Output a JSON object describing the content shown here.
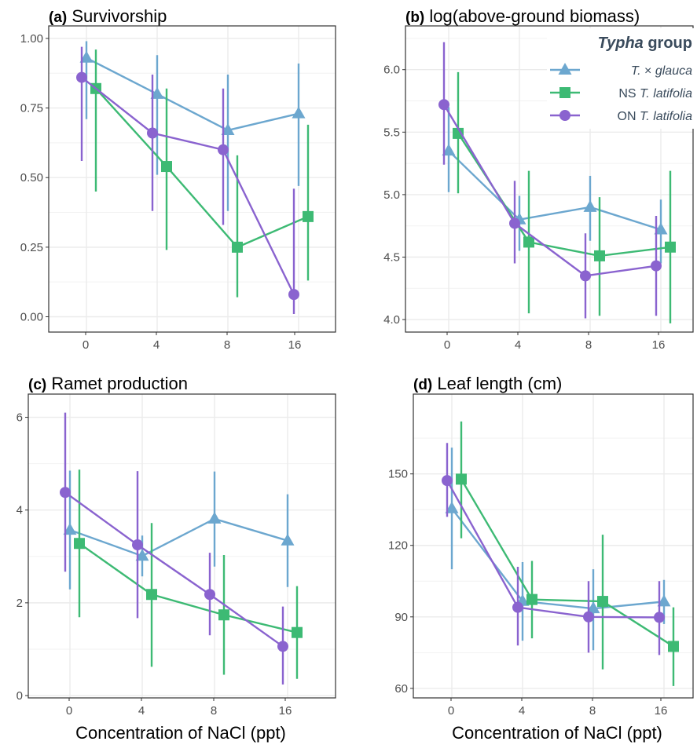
{
  "colors": {
    "glauca": "#6ca7cf",
    "ns": "#3dba74",
    "on": "#8a63cf"
  },
  "legend": {
    "title_italic": "Typha",
    "title_rest": " group",
    "placement": "top-right of panel (b)",
    "entries": [
      {
        "prefix": "",
        "italic": "T.",
        "rest": " × ",
        "italic2": "glauca",
        "series": "glauca",
        "marker": "triangle"
      },
      {
        "prefix": "NS ",
        "italic": "T. latifolia",
        "rest": "",
        "italic2": "",
        "series": "ns",
        "marker": "square"
      },
      {
        "prefix": "ON ",
        "italic": "T. latifolia",
        "rest": "",
        "italic2": "",
        "series": "on",
        "marker": "circle"
      }
    ]
  },
  "xlabel": "Concentration of NaCl (ppt)",
  "chart_data": [
    {
      "type": "line",
      "id": "a",
      "tag": "(a)",
      "title": "Survivorship",
      "categories": [
        "0",
        "4",
        "8",
        "16"
      ],
      "ylim": [
        -0.055,
        1.045
      ],
      "yticks": [
        "0.00",
        "0.25",
        "0.50",
        "0.75",
        "1.00"
      ],
      "ytick_values": [
        0,
        0.25,
        0.5,
        0.75,
        1.0
      ],
      "grid": true,
      "series": [
        {
          "key": "glauca",
          "y": [
            0.93,
            0.8,
            0.67,
            0.73
          ],
          "lo": [
            0.71,
            0.51,
            0.38,
            0.47
          ],
          "hi": [
            0.99,
            0.94,
            0.87,
            0.91
          ]
        },
        {
          "key": "ns",
          "y": [
            0.82,
            0.54,
            0.25,
            0.36
          ],
          "lo": [
            0.45,
            0.24,
            0.07,
            0.13
          ],
          "hi": [
            0.96,
            0.82,
            0.58,
            0.69
          ]
        },
        {
          "key": "on",
          "y": [
            0.86,
            0.66,
            0.6,
            0.08
          ],
          "lo": [
            0.56,
            0.38,
            0.33,
            0.01
          ],
          "hi": [
            0.97,
            0.87,
            0.82,
            0.46
          ]
        }
      ]
    },
    {
      "type": "line",
      "id": "b",
      "tag": "(b)",
      "title": "log(above-ground biomass)",
      "categories": [
        "0",
        "4",
        "8",
        "16"
      ],
      "ylim": [
        3.9,
        6.35
      ],
      "yticks": [
        "4.0",
        "4.5",
        "5.0",
        "5.5",
        "6.0"
      ],
      "ytick_values": [
        4.0,
        4.5,
        5.0,
        5.5,
        6.0
      ],
      "grid": true,
      "series": [
        {
          "key": "glauca",
          "y": [
            5.35,
            4.8,
            4.9,
            4.72
          ],
          "lo": [
            5.02,
            4.55,
            4.63,
            4.45
          ],
          "hi": [
            5.7,
            4.99,
            5.15,
            4.96
          ]
        },
        {
          "key": "ns",
          "y": [
            5.49,
            4.62,
            4.51,
            4.58
          ],
          "lo": [
            5.01,
            4.05,
            4.03,
            3.97
          ],
          "hi": [
            5.98,
            5.19,
            4.98,
            5.19
          ]
        },
        {
          "key": "on",
          "y": [
            5.72,
            4.77,
            4.35,
            4.43
          ],
          "lo": [
            5.24,
            4.45,
            4.01,
            4.03
          ],
          "hi": [
            6.22,
            5.11,
            4.69,
            4.83
          ]
        }
      ]
    },
    {
      "type": "line",
      "id": "c",
      "tag": "(c)",
      "title": "Ramet production",
      "categories": [
        "0",
        "4",
        "8",
        "16"
      ],
      "ylim": [
        -0.05,
        6.5
      ],
      "yticks": [
        "0",
        "2",
        "4",
        "6"
      ],
      "ytick_values": [
        0,
        2,
        4,
        6
      ],
      "grid": true,
      "series": [
        {
          "key": "glauca",
          "y": [
            3.57,
            3.01,
            3.81,
            3.34
          ],
          "lo": [
            2.29,
            2.57,
            2.78,
            2.34
          ],
          "hi": [
            4.85,
            3.45,
            4.83,
            4.34
          ]
        },
        {
          "key": "ns",
          "y": [
            3.28,
            2.18,
            1.74,
            1.36
          ],
          "lo": [
            1.69,
            0.62,
            0.45,
            0.36
          ],
          "hi": [
            4.87,
            3.72,
            3.03,
            2.36
          ]
        },
        {
          "key": "on",
          "y": [
            4.38,
            3.25,
            2.18,
            1.06
          ],
          "lo": [
            2.67,
            1.67,
            1.3,
            0.24
          ],
          "hi": [
            6.1,
            4.84,
            3.08,
            1.92
          ]
        }
      ]
    },
    {
      "type": "line",
      "id": "d",
      "tag": "(d)",
      "title": "Leaf length (cm)",
      "categories": [
        "0",
        "4",
        "8",
        "16"
      ],
      "ylim": [
        56.0,
        183.5
      ],
      "yticks": [
        "60",
        "90",
        "120",
        "150"
      ],
      "ytick_values": [
        60,
        90,
        120,
        150
      ],
      "grid": true,
      "series": [
        {
          "key": "glauca",
          "y": [
            135.5,
            96.6,
            93.5,
            96.4
          ],
          "lo": [
            110.0,
            80.0,
            76.0,
            87.0
          ],
          "hi": [
            161.0,
            113.0,
            110.0,
            105.5
          ]
        },
        {
          "key": "ns",
          "y": [
            147.8,
            97.3,
            96.5,
            77.6
          ],
          "lo": [
            123.0,
            81.0,
            68.0,
            61.0
          ],
          "hi": [
            172.0,
            113.5,
            124.5,
            94.0
          ]
        },
        {
          "key": "on",
          "y": [
            147.2,
            94.0,
            90.0,
            89.8
          ],
          "lo": [
            132.0,
            78.0,
            75.0,
            74.0
          ],
          "hi": [
            163.0,
            111.0,
            105.0,
            105.0
          ]
        }
      ]
    }
  ]
}
